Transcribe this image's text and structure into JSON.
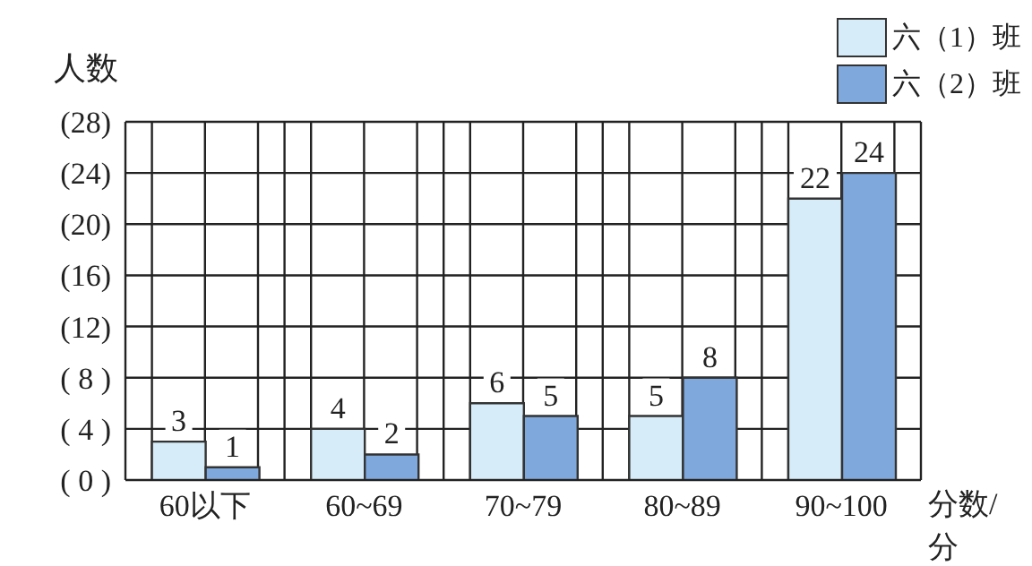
{
  "chart_data": {
    "type": "bar",
    "ylabel": "人数",
    "xlabel": "分数/分",
    "categories": [
      "60以下",
      "60~69",
      "70~79",
      "80~89",
      "90~100"
    ],
    "series": [
      {
        "name": "六（1）班",
        "color": "#d6ecf8",
        "values": [
          3,
          4,
          6,
          5,
          22
        ]
      },
      {
        "name": "六（2）班",
        "color": "#7fa8dc",
        "values": [
          1,
          2,
          5,
          8,
          24
        ]
      }
    ],
    "ylim": [
      0,
      28
    ],
    "yticks": [
      {
        "value": 0,
        "label": "( 0 )"
      },
      {
        "value": 4,
        "label": "( 4 )"
      },
      {
        "value": 8,
        "label": "( 8 )"
      },
      {
        "value": 12,
        "label": "(12)"
      },
      {
        "value": 16,
        "label": "(16)"
      },
      {
        "value": 20,
        "label": "(20)"
      },
      {
        "value": 24,
        "label": "(24)"
      },
      {
        "value": 28,
        "label": "(28)"
      }
    ],
    "grid": true,
    "data_labels": true,
    "legend": "top right"
  }
}
